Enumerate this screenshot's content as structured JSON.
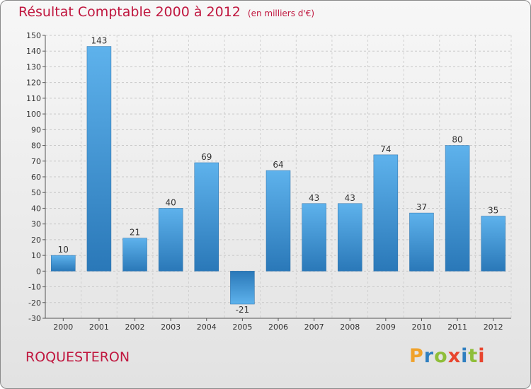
{
  "header": {
    "title": "Résultat Comptable 2000 à 2012",
    "subtitle": "(en milliers d'€)"
  },
  "footer": {
    "location": "ROQUESTERON",
    "brand": {
      "letters": [
        "P",
        "r",
        "o",
        "x",
        "i",
        "t",
        "i"
      ],
      "colors": [
        "#f0a22a",
        "#2f7fc0",
        "#8fbe3a",
        "#e8452e",
        "#2f7fc0",
        "#8fbe3a",
        "#e8452e"
      ]
    }
  },
  "chart_data": {
    "type": "bar",
    "title": "Résultat Comptable 2000 à 2012",
    "subtitle": "(en milliers d'€)",
    "categories": [
      "2000",
      "2001",
      "2002",
      "2003",
      "2004",
      "2005",
      "2006",
      "2007",
      "2008",
      "2009",
      "2010",
      "2011",
      "2012"
    ],
    "values": [
      10,
      143,
      21,
      40,
      69,
      -21,
      64,
      43,
      43,
      74,
      37,
      80,
      35
    ],
    "ylim": [
      -30,
      150
    ],
    "yticks": [
      -30,
      -20,
      -10,
      0,
      10,
      20,
      30,
      40,
      50,
      60,
      70,
      80,
      90,
      100,
      110,
      120,
      130,
      140,
      150
    ],
    "grid": true,
    "bar_color": "#3f97d8"
  }
}
